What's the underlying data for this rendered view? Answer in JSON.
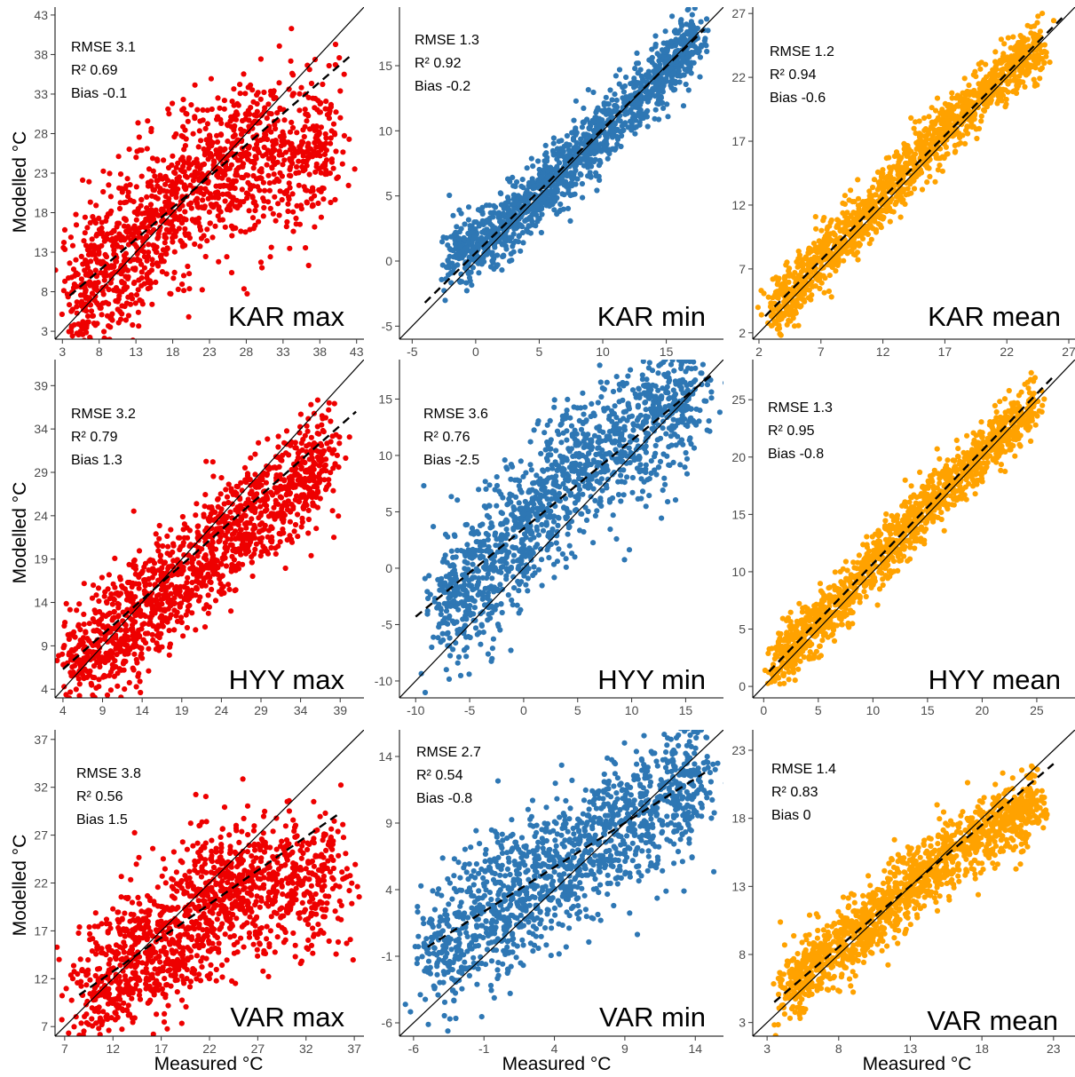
{
  "figure": {
    "xlabel": "Measured °C",
    "ylabel": "Modelled °C"
  },
  "chart_data": [
    {
      "type": "scatter",
      "title": "KAR max",
      "color": "#ee0000",
      "xlim": [
        2,
        44
      ],
      "ylim": [
        2,
        44
      ],
      "xticks": [
        3,
        8,
        13,
        18,
        23,
        28,
        33,
        38,
        43
      ],
      "yticks": [
        3,
        8,
        13,
        18,
        23,
        28,
        33,
        38,
        43
      ],
      "stats": {
        "rmse": "RMSE 3.1",
        "r2": "R² 0.69",
        "bias": "Bias -0.1"
      },
      "fit": {
        "x": [
          4,
          42
        ],
        "y": [
          7.5,
          37.7
        ]
      },
      "cloud": [
        [
          5,
          5
        ],
        [
          7,
          7
        ],
        [
          10,
          11
        ],
        [
          13,
          14
        ],
        [
          16,
          17
        ],
        [
          19,
          20
        ],
        [
          22,
          22.5
        ],
        [
          25,
          24
        ],
        [
          28,
          25.5
        ],
        [
          32,
          25.5
        ],
        [
          36,
          25.5
        ],
        [
          40,
          27
        ]
      ],
      "spread": 5.0
    },
    {
      "type": "scatter",
      "title": "KAR min",
      "color": "#2e77b4",
      "xlim": [
        -6,
        19.5
      ],
      "ylim": [
        -6,
        19.5
      ],
      "xticks": [
        -5,
        0,
        5,
        10,
        15
      ],
      "yticks": [
        -5,
        0,
        5,
        10,
        15
      ],
      "stats": {
        "rmse": "RMSE 1.3",
        "r2": "R² 0.92",
        "bias": "Bias -0.2"
      },
      "fit": {
        "x": [
          -4,
          18
        ],
        "y": [
          -3.2,
          17.8
        ]
      },
      "cloud": [
        [
          -2,
          0
        ],
        [
          0,
          1
        ],
        [
          2,
          2.5
        ],
        [
          4,
          4.2
        ],
        [
          6,
          6.2
        ],
        [
          8,
          7.8
        ],
        [
          10,
          9.8
        ],
        [
          12,
          11.8
        ],
        [
          14,
          13.8
        ],
        [
          16,
          15.8
        ],
        [
          17.5,
          17.2
        ]
      ],
      "spread": 1.3
    },
    {
      "type": "scatter",
      "title": "KAR mean",
      "color": "#ffa200",
      "xlim": [
        1.5,
        27.5
      ],
      "ylim": [
        1.5,
        27.5
      ],
      "xticks": [
        2,
        7,
        12,
        17,
        22,
        27
      ],
      "yticks": [
        2,
        7,
        12,
        17,
        22,
        27
      ],
      "stats": {
        "rmse": "RMSE 1.2",
        "r2": "R² 0.94",
        "bias": "Bias -0.6"
      },
      "fit": {
        "x": [
          2.5,
          26.5
        ],
        "y": [
          3.3,
          26.7
        ]
      },
      "cloud": [
        [
          3,
          3.5
        ],
        [
          5,
          5.5
        ],
        [
          7,
          7.6
        ],
        [
          9,
          9.6
        ],
        [
          11,
          11.7
        ],
        [
          13,
          13.7
        ],
        [
          15,
          15.8
        ],
        [
          17,
          17.8
        ],
        [
          19,
          19.8
        ],
        [
          21,
          21.6
        ],
        [
          23,
          23.2
        ],
        [
          25,
          24.2
        ]
      ],
      "spread": 1.1
    },
    {
      "type": "scatter",
      "title": "HYY max",
      "color": "#ee0000",
      "xlim": [
        3,
        42
      ],
      "ylim": [
        3,
        42
      ],
      "xticks": [
        4,
        9,
        14,
        19,
        24,
        29,
        34,
        39
      ],
      "yticks": [
        4,
        9,
        14,
        19,
        24,
        29,
        34,
        39
      ],
      "stats": {
        "rmse": "RMSE 3.2",
        "r2": "R² 0.79",
        "bias": "Bias 1.3"
      },
      "fit": {
        "x": [
          4,
          41
        ],
        "y": [
          6.3,
          36
        ]
      },
      "cloud": [
        [
          5,
          6.5
        ],
        [
          8,
          8.5
        ],
        [
          11,
          10.5
        ],
        [
          14,
          13
        ],
        [
          17,
          15.5
        ],
        [
          20,
          18
        ],
        [
          23,
          20.5
        ],
        [
          26,
          23
        ],
        [
          29,
          25
        ],
        [
          32,
          27
        ],
        [
          35,
          29
        ],
        [
          38,
          32
        ]
      ],
      "spread": 3.2
    },
    {
      "type": "scatter",
      "title": "HYY min",
      "color": "#2e77b4",
      "xlim": [
        -11.5,
        18.5
      ],
      "ylim": [
        -11.5,
        18.5
      ],
      "xticks": [
        -10,
        -5,
        0,
        5,
        10,
        15
      ],
      "yticks": [
        -10,
        -5,
        0,
        5,
        10,
        15
      ],
      "stats": {
        "rmse": "RMSE 3.6",
        "r2": "R² 0.76",
        "bias": "Bias -2.5"
      },
      "fit": {
        "x": [
          -10,
          17.5
        ],
        "y": [
          -4.3,
          17.2
        ]
      },
      "cloud": [
        [
          -8,
          -4
        ],
        [
          -6,
          -2.5
        ],
        [
          -4,
          -1
        ],
        [
          -2,
          1.5
        ],
        [
          0,
          3.5
        ],
        [
          2,
          6
        ],
        [
          4,
          8
        ],
        [
          6,
          9.5
        ],
        [
          8,
          10.5
        ],
        [
          10,
          12
        ],
        [
          12,
          13.5
        ],
        [
          14,
          14.5
        ],
        [
          16,
          15.5
        ]
      ],
      "spread": 3.0
    },
    {
      "type": "scatter",
      "title": "HYY mean",
      "color": "#ffa200",
      "xlim": [
        -1,
        28.5
      ],
      "ylim": [
        -1,
        28.5
      ],
      "xticks": [
        0,
        5,
        10,
        15,
        20,
        25
      ],
      "yticks": [
        0,
        5,
        10,
        15,
        20,
        25
      ],
      "stats": {
        "rmse": "RMSE 1.3",
        "r2": "R² 0.95",
        "bias": "Bias -0.8"
      },
      "fit": {
        "x": [
          0.5,
          26.5
        ],
        "y": [
          1.3,
          27
        ]
      },
      "cloud": [
        [
          1,
          1.5
        ],
        [
          3,
          3.8
        ],
        [
          5,
          5.5
        ],
        [
          7,
          7.2
        ],
        [
          9,
          9.5
        ],
        [
          11,
          11.8
        ],
        [
          13,
          13.8
        ],
        [
          15,
          15.8
        ],
        [
          17,
          17.6
        ],
        [
          19,
          19.5
        ],
        [
          21,
          21.3
        ],
        [
          23,
          23
        ],
        [
          25,
          24.6
        ]
      ],
      "spread": 1.2
    },
    {
      "type": "scatter",
      "title": "VAR max",
      "color": "#ee0000",
      "xlim": [
        6,
        38
      ],
      "ylim": [
        6,
        38
      ],
      "xticks": [
        7,
        12,
        17,
        22,
        27,
        32,
        37
      ],
      "yticks": [
        7,
        12,
        17,
        22,
        27,
        32,
        37
      ],
      "stats": {
        "rmse": "RMSE 3.8",
        "r2": "R² 0.56",
        "bias": "Bias 1.5"
      },
      "fit": {
        "x": [
          8.5,
          35.5
        ],
        "y": [
          10.3,
          29.3
        ]
      },
      "cloud": [
        [
          9,
          9.5
        ],
        [
          11,
          11
        ],
        [
          13,
          13
        ],
        [
          15,
          14.5
        ],
        [
          17,
          16
        ],
        [
          19,
          17.5
        ],
        [
          21,
          19
        ],
        [
          23,
          20.5
        ],
        [
          25,
          21.5
        ],
        [
          27,
          22
        ],
        [
          30,
          22
        ],
        [
          33,
          22
        ],
        [
          36,
          23
        ]
      ],
      "spread": 3.6
    },
    {
      "type": "scatter",
      "title": "VAR min",
      "color": "#2e77b4",
      "xlim": [
        -7,
        16
      ],
      "ylim": [
        -7,
        16
      ],
      "xticks": [
        -6,
        -1,
        4,
        9,
        14
      ],
      "yticks": [
        -6,
        -1,
        4,
        9,
        14
      ],
      "stats": {
        "rmse": "RMSE 2.7",
        "r2": "R² 0.54",
        "bias": "Bias -0.8"
      },
      "fit": {
        "x": [
          -5,
          15
        ],
        "y": [
          -0.3,
          13
        ]
      },
      "cloud": [
        [
          -5,
          -1.5
        ],
        [
          -3,
          0.5
        ],
        [
          -1,
          2
        ],
        [
          1,
          3.5
        ],
        [
          3,
          4.8
        ],
        [
          5,
          6.2
        ],
        [
          7,
          7.8
        ],
        [
          9,
          9
        ],
        [
          11,
          10.2
        ],
        [
          13,
          11.5
        ],
        [
          14.5,
          12.5
        ]
      ],
      "spread": 2.5
    },
    {
      "type": "scatter",
      "title": "VAR mean",
      "color": "#ffa200",
      "xlim": [
        2,
        24.5
      ],
      "ylim": [
        2,
        24.5
      ],
      "xticks": [
        3,
        8,
        13,
        18,
        23
      ],
      "yticks": [
        3,
        8,
        13,
        18,
        23
      ],
      "stats": {
        "rmse": "RMSE 1.4",
        "r2": "R² 0.83",
        "bias": "Bias 0"
      },
      "fit": {
        "x": [
          3.5,
          23
        ],
        "y": [
          4.5,
          22
        ]
      },
      "cloud": [
        [
          4,
          5
        ],
        [
          6,
          6.8
        ],
        [
          8,
          8.5
        ],
        [
          10,
          10.3
        ],
        [
          12,
          12
        ],
        [
          14,
          13.8
        ],
        [
          16,
          15.5
        ],
        [
          18,
          17
        ],
        [
          20,
          18.2
        ],
        [
          22,
          18.8
        ]
      ],
      "spread": 1.3
    }
  ]
}
